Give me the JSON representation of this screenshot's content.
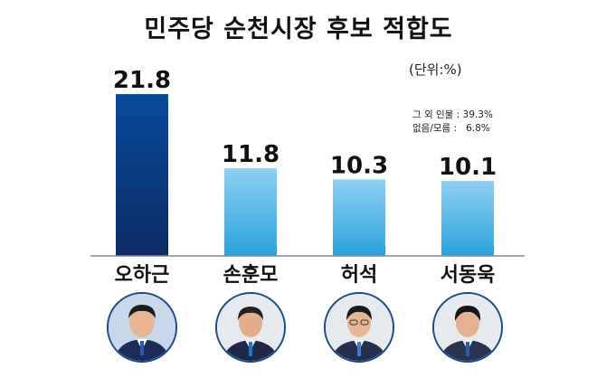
{
  "title": "민주당 순천시장 후보 적합도",
  "unit_label": "(단위:%)",
  "notes": [
    {
      "label": "그 외 인물",
      "value": "39.3%"
    },
    {
      "label": "없음/모름",
      "value": "6.8%"
    }
  ],
  "colors": {
    "highlight_top": "#0a4a9c",
    "highlight_bottom": "#0c2c64",
    "normal_top": "#8fd0f2",
    "normal_bottom": "#2aa2dc",
    "baseline": "#888888"
  },
  "chart_data": {
    "type": "bar",
    "categories": [
      "오하근",
      "손훈모",
      "허석",
      "서동욱"
    ],
    "values": [
      21.8,
      11.8,
      10.3,
      10.1
    ],
    "value_labels": [
      "21.8",
      "11.8",
      "10.3",
      "10.1"
    ],
    "title": "민주당 순천시장 후보 적합도",
    "ylim": [
      0,
      24
    ],
    "grid": false,
    "highlight_index": 0
  }
}
